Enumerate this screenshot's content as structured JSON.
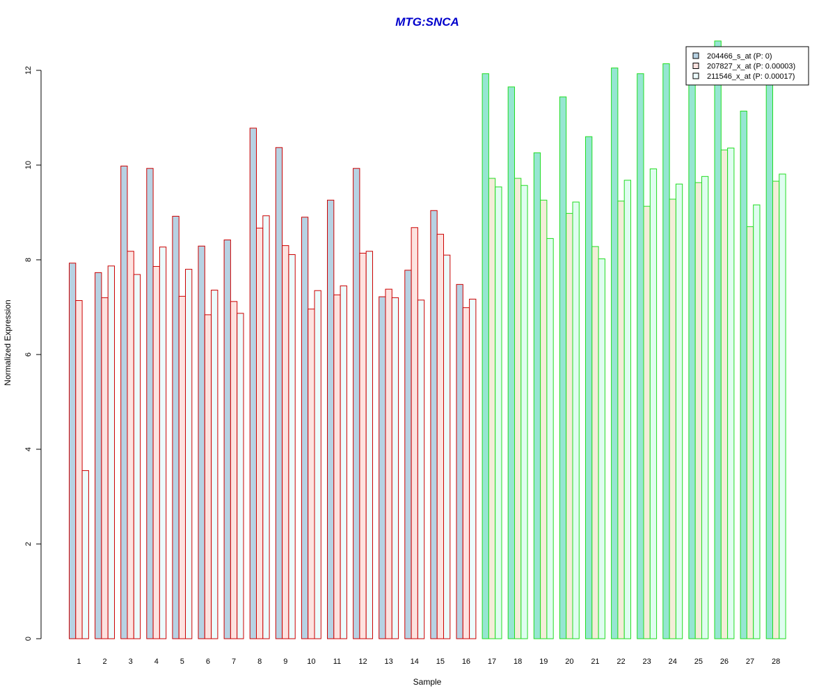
{
  "chart_data": {
    "type": "bar",
    "title": "MTG:SNCA",
    "xlabel": "Sample",
    "ylabel": "Normalized Expression",
    "ylim": [
      0,
      12.6
    ],
    "yticks": [
      0,
      2,
      4,
      6,
      8,
      10,
      12
    ],
    "categories": [
      "1",
      "2",
      "3",
      "4",
      "5",
      "6",
      "7",
      "8",
      "9",
      "10",
      "11",
      "12",
      "13",
      "14",
      "15",
      "16",
      "17",
      "18",
      "19",
      "20",
      "21",
      "22",
      "23",
      "24",
      "25",
      "26",
      "27",
      "28"
    ],
    "groups": [
      {
        "samples_from": 1,
        "samples_to": 16,
        "border_color": "#cc0000"
      },
      {
        "samples_from": 17,
        "samples_to": 28,
        "border_color": "#22dd22"
      }
    ],
    "series": [
      {
        "name": "204466_s_at (P: 0)",
        "fill_colors": {
          "group1": "#b7d2e3",
          "group2": "#96e6d2"
        },
        "legend_color": "#b7d2e3",
        "values": [
          7.93,
          7.73,
          9.98,
          9.93,
          8.92,
          8.29,
          8.42,
          10.78,
          10.37,
          8.9,
          9.26,
          9.93,
          7.22,
          7.78,
          9.04,
          7.48,
          11.93,
          11.65,
          10.26,
          11.44,
          10.6,
          12.05,
          11.93,
          12.14,
          11.95,
          12.62,
          11.14,
          11.86
        ]
      },
      {
        "name": "207827_x_at (P: 0.00003)",
        "fill_colors": {
          "group1": "#fde2df",
          "group2": "#f3edd8"
        },
        "legend_color": "#fde2df",
        "values": [
          7.14,
          7.2,
          8.18,
          7.86,
          7.23,
          6.84,
          7.12,
          8.67,
          8.3,
          6.96,
          7.26,
          8.14,
          7.38,
          8.68,
          8.54,
          6.99,
          9.72,
          9.72,
          9.26,
          8.98,
          8.28,
          9.24,
          9.13,
          9.28,
          9.63,
          10.32,
          8.7,
          9.66
        ]
      },
      {
        "name": "211546_x_at (P: 0.00017)",
        "fill_colors": {
          "group1": "#ecfbfc",
          "group2": "#dffdf0"
        },
        "legend_color": "#ecfbfc",
        "values": [
          3.55,
          7.87,
          7.69,
          8.27,
          7.8,
          7.36,
          6.87,
          8.93,
          8.11,
          7.35,
          7.45,
          8.18,
          7.2,
          7.15,
          8.1,
          7.17,
          9.54,
          9.57,
          8.45,
          9.22,
          8.02,
          9.68,
          9.92,
          9.6,
          9.76,
          10.36,
          9.16,
          9.81
        ]
      }
    ],
    "legend_position": "top-right",
    "grid": false,
    "title_color": "#0000cc"
  }
}
